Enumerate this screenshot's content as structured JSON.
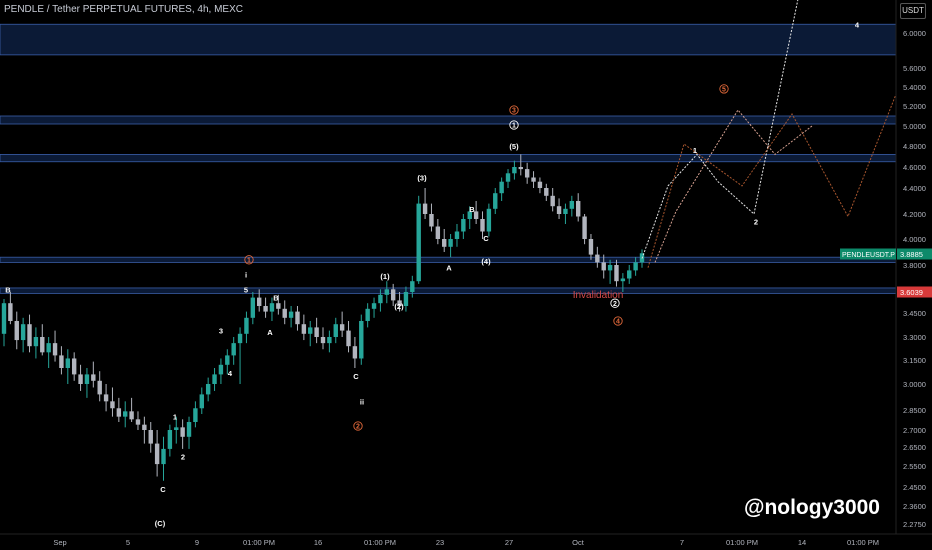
{
  "header": {
    "title": "PENDLE / Tether PERPETUAL FUTURES, 4h, MEXC",
    "unit_button": "USDT"
  },
  "watermark": "@nology3000",
  "colors": {
    "background": "#000000",
    "up_candle": "#26a69a",
    "down_candle": "#b2b5be",
    "zone_fill": "#0b1a36",
    "zone_line": "#3a5ea8",
    "orange": "#e0683a",
    "price_tag_green": "#0d8a6a",
    "price_tag_red": "#d83a3a",
    "projection_1": "#e6e6e6",
    "projection_2": "#a8562e",
    "projection_3": "#d5a090"
  },
  "chart_data": {
    "type": "candlestick",
    "y_ticks": [
      "6.0000",
      "5.6000",
      "5.4000",
      "5.2000",
      "5.0000",
      "4.8000",
      "4.6000",
      "4.4000",
      "4.2000",
      "4.0000",
      "3.8000",
      "3.6000",
      "3.4500",
      "3.3000",
      "3.1500",
      "3.0000",
      "2.8500",
      "2.7000",
      "2.6500",
      "2.5500",
      "2.4500",
      "2.3600",
      "2.2750"
    ],
    "x_ticks": [
      "Sep",
      "5",
      "9",
      "01:00 PM",
      "16",
      "01:00 PM",
      "23",
      "27",
      "Oct",
      "7",
      "01:00 PM",
      "14",
      "01:00 PM"
    ],
    "price_tags": [
      {
        "label": "PENDLEUSDT.P",
        "value": "3.8885",
        "color": "green"
      },
      {
        "label": "",
        "value": "3.6039",
        "color": "red"
      }
    ],
    "zones": [
      {
        "from": 6.1,
        "to": 5.75
      },
      {
        "from": 5.1,
        "to": 5.02
      },
      {
        "from": 4.72,
        "to": 4.65
      },
      {
        "from": 3.86,
        "to": 3.82
      },
      {
        "from": 3.63,
        "to": 3.59
      }
    ],
    "annotations": [
      {
        "text": "B",
        "x": 8,
        "price": 3.62,
        "style": "white"
      },
      {
        "text": "1",
        "x": 249,
        "price": 3.84,
        "style": "orange-circle"
      },
      {
        "text": "i",
        "x": 246,
        "price": 3.73,
        "style": "white"
      },
      {
        "text": "5",
        "x": 246,
        "price": 3.62,
        "style": "white"
      },
      {
        "text": "B",
        "x": 276,
        "price": 3.56,
        "style": "white"
      },
      {
        "text": "A",
        "x": 270,
        "price": 3.33,
        "style": "white"
      },
      {
        "text": "3",
        "x": 221,
        "price": 3.34,
        "style": "white"
      },
      {
        "text": "4",
        "x": 230,
        "price": 3.07,
        "style": "white"
      },
      {
        "text": "1",
        "x": 175,
        "price": 2.8,
        "style": "white"
      },
      {
        "text": "2",
        "x": 183,
        "price": 2.6,
        "style": "white"
      },
      {
        "text": "C",
        "x": 163,
        "price": 2.44,
        "style": "white"
      },
      {
        "text": "(C)",
        "x": 160,
        "price": 2.28,
        "style": "white"
      },
      {
        "text": "(1)",
        "x": 385,
        "price": 3.72,
        "style": "white"
      },
      {
        "text": "(2)",
        "x": 399,
        "price": 3.5,
        "style": "white"
      },
      {
        "text": "C",
        "x": 356,
        "price": 3.05,
        "style": "white"
      },
      {
        "text": "ii",
        "x": 362,
        "price": 2.9,
        "style": "white"
      },
      {
        "text": "2",
        "x": 358,
        "price": 2.73,
        "style": "orange-circle"
      },
      {
        "text": "(3)",
        "x": 422,
        "price": 4.5,
        "style": "white"
      },
      {
        "text": "B",
        "x": 472,
        "price": 4.24,
        "style": "white"
      },
      {
        "text": "C",
        "x": 486,
        "price": 4.01,
        "style": "white"
      },
      {
        "text": "(4)",
        "x": 486,
        "price": 3.83,
        "style": "white"
      },
      {
        "text": "A",
        "x": 449,
        "price": 3.78,
        "style": "white"
      },
      {
        "text": "3",
        "x": 514,
        "price": 5.16,
        "style": "orange-circle"
      },
      {
        "text": "1",
        "x": 514,
        "price": 5.01,
        "style": "white-circle"
      },
      {
        "text": "(5)",
        "x": 514,
        "price": 4.8,
        "style": "white"
      },
      {
        "text": "Invalidation",
        "x": 598,
        "price": 3.58,
        "style": "red-text"
      },
      {
        "text": "2",
        "x": 615,
        "price": 3.52,
        "style": "white-circle"
      },
      {
        "text": "4",
        "x": 618,
        "price": 3.4,
        "style": "orange-circle"
      },
      {
        "text": "1",
        "x": 695,
        "price": 4.76,
        "style": "white"
      },
      {
        "text": "2",
        "x": 756,
        "price": 4.14,
        "style": "white"
      },
      {
        "text": "5",
        "x": 724,
        "price": 5.38,
        "style": "orange-circle"
      },
      {
        "text": "4",
        "x": 857,
        "price": 6.1,
        "style": "white"
      }
    ],
    "candles": [
      [
        3.32,
        3.55,
        3.24,
        3.52
      ],
      [
        3.52,
        3.6,
        3.38,
        3.4
      ],
      [
        3.4,
        3.46,
        3.22,
        3.28
      ],
      [
        3.28,
        3.42,
        3.2,
        3.38
      ],
      [
        3.38,
        3.44,
        3.2,
        3.24
      ],
      [
        3.24,
        3.36,
        3.16,
        3.3
      ],
      [
        3.3,
        3.38,
        3.18,
        3.2
      ],
      [
        3.2,
        3.3,
        3.1,
        3.26
      ],
      [
        3.26,
        3.34,
        3.14,
        3.18
      ],
      [
        3.18,
        3.24,
        3.06,
        3.1
      ],
      [
        3.1,
        3.22,
        3.0,
        3.16
      ],
      [
        3.16,
        3.2,
        3.02,
        3.06
      ],
      [
        3.06,
        3.12,
        2.96,
        3.0
      ],
      [
        3.0,
        3.1,
        2.92,
        3.06
      ],
      [
        3.06,
        3.14,
        2.98,
        3.02
      ],
      [
        3.02,
        3.08,
        2.9,
        2.94
      ],
      [
        2.94,
        3.0,
        2.84,
        2.9
      ],
      [
        2.9,
        2.98,
        2.8,
        2.86
      ],
      [
        2.86,
        2.92,
        2.76,
        2.8
      ],
      [
        2.8,
        2.9,
        2.72,
        2.84
      ],
      [
        2.84,
        2.92,
        2.76,
        2.78
      ],
      [
        2.78,
        2.84,
        2.7,
        2.74
      ],
      [
        2.74,
        2.8,
        2.66,
        2.7
      ],
      [
        2.7,
        2.76,
        2.62,
        2.66
      ],
      [
        2.66,
        2.7,
        2.5,
        2.56
      ],
      [
        2.56,
        2.68,
        2.48,
        2.64
      ],
      [
        2.64,
        2.74,
        2.6,
        2.7
      ],
      [
        2.7,
        2.8,
        2.66,
        2.72
      ],
      [
        2.72,
        2.78,
        2.64,
        2.68
      ],
      [
        2.68,
        2.8,
        2.64,
        2.76
      ],
      [
        2.76,
        2.9,
        2.72,
        2.86
      ],
      [
        2.86,
        2.98,
        2.82,
        2.94
      ],
      [
        2.94,
        3.04,
        2.9,
        3.0
      ],
      [
        3.0,
        3.1,
        2.96,
        3.06
      ],
      [
        3.06,
        3.16,
        3.0,
        3.12
      ],
      [
        3.12,
        3.22,
        3.06,
        3.18
      ],
      [
        3.18,
        3.3,
        3.12,
        3.26
      ],
      [
        3.26,
        3.36,
        3.0,
        3.32
      ],
      [
        3.32,
        3.46,
        3.26,
        3.42
      ],
      [
        3.42,
        3.6,
        3.38,
        3.56
      ],
      [
        3.56,
        3.62,
        3.46,
        3.5
      ],
      [
        3.5,
        3.56,
        3.42,
        3.46
      ],
      [
        3.46,
        3.56,
        3.4,
        3.52
      ],
      [
        3.52,
        3.58,
        3.44,
        3.48
      ],
      [
        3.48,
        3.54,
        3.38,
        3.42
      ],
      [
        3.42,
        3.5,
        3.36,
        3.46
      ],
      [
        3.46,
        3.5,
        3.34,
        3.38
      ],
      [
        3.38,
        3.44,
        3.28,
        3.32
      ],
      [
        3.32,
        3.4,
        3.24,
        3.36
      ],
      [
        3.36,
        3.42,
        3.26,
        3.3
      ],
      [
        3.3,
        3.36,
        3.22,
        3.26
      ],
      [
        3.26,
        3.34,
        3.2,
        3.3
      ],
      [
        3.3,
        3.42,
        3.26,
        3.38
      ],
      [
        3.38,
        3.46,
        3.3,
        3.34
      ],
      [
        3.34,
        3.4,
        3.2,
        3.24
      ],
      [
        3.24,
        3.3,
        3.1,
        3.16
      ],
      [
        3.16,
        3.44,
        3.12,
        3.4
      ],
      [
        3.4,
        3.52,
        3.36,
        3.48
      ],
      [
        3.48,
        3.56,
        3.42,
        3.52
      ],
      [
        3.52,
        3.62,
        3.46,
        3.58
      ],
      [
        3.58,
        3.68,
        3.52,
        3.62
      ],
      [
        3.62,
        3.66,
        3.5,
        3.54
      ],
      [
        3.54,
        3.6,
        3.46,
        3.5
      ],
      [
        3.5,
        3.64,
        3.46,
        3.6
      ],
      [
        3.6,
        3.72,
        3.56,
        3.68
      ],
      [
        3.68,
        4.34,
        3.66,
        4.28
      ],
      [
        4.28,
        4.4,
        4.16,
        4.2
      ],
      [
        4.2,
        4.28,
        4.06,
        4.1
      ],
      [
        4.1,
        4.16,
        3.96,
        4.0
      ],
      [
        4.0,
        4.08,
        3.9,
        3.94
      ],
      [
        3.94,
        4.04,
        3.86,
        4.0
      ],
      [
        4.0,
        4.12,
        3.94,
        4.06
      ],
      [
        4.06,
        4.2,
        4.0,
        4.16
      ],
      [
        4.16,
        4.26,
        4.08,
        4.22
      ],
      [
        4.22,
        4.3,
        4.12,
        4.16
      ],
      [
        4.16,
        4.22,
        4.0,
        4.06
      ],
      [
        4.06,
        4.28,
        4.02,
        4.24
      ],
      [
        4.24,
        4.4,
        4.2,
        4.36
      ],
      [
        4.36,
        4.5,
        4.3,
        4.46
      ],
      [
        4.46,
        4.58,
        4.4,
        4.54
      ],
      [
        4.54,
        4.66,
        4.48,
        4.6
      ],
      [
        4.6,
        4.72,
        4.52,
        4.58
      ],
      [
        4.58,
        4.64,
        4.44,
        4.5
      ],
      [
        4.5,
        4.56,
        4.4,
        4.46
      ],
      [
        4.46,
        4.5,
        4.36,
        4.4
      ],
      [
        4.4,
        4.44,
        4.3,
        4.34
      ],
      [
        4.34,
        4.4,
        4.22,
        4.26
      ],
      [
        4.26,
        4.32,
        4.16,
        4.2
      ],
      [
        4.2,
        4.28,
        4.12,
        4.24
      ],
      [
        4.24,
        4.34,
        4.18,
        4.3
      ],
      [
        4.3,
        4.36,
        4.14,
        4.18
      ],
      [
        4.18,
        4.2,
        3.96,
        4.0
      ],
      [
        4.0,
        4.04,
        3.84,
        3.88
      ],
      [
        3.88,
        3.94,
        3.78,
        3.82
      ],
      [
        3.82,
        3.88,
        3.7,
        3.76
      ],
      [
        3.76,
        3.84,
        3.66,
        3.8
      ],
      [
        3.8,
        3.84,
        3.64,
        3.68
      ],
      [
        3.68,
        3.74,
        3.6,
        3.7
      ],
      [
        3.7,
        3.8,
        3.66,
        3.76
      ],
      [
        3.76,
        3.86,
        3.72,
        3.82
      ],
      [
        3.82,
        3.92,
        3.78,
        3.89
      ]
    ],
    "projections": [
      {
        "color": "projection_1",
        "points": [
          [
            642,
            3.85
          ],
          [
            668,
            4.42
          ],
          [
            697,
            4.72
          ],
          [
            718,
            4.46
          ],
          [
            754,
            4.2
          ],
          [
            800,
            6.5
          ]
        ]
      },
      {
        "color": "projection_2",
        "points": [
          [
            648,
            3.78
          ],
          [
            684,
            4.82
          ],
          [
            742,
            4.42
          ],
          [
            792,
            5.12
          ],
          [
            848,
            4.18
          ],
          [
            897,
            5.35
          ]
        ]
      },
      {
        "color": "projection_3",
        "points": [
          [
            655,
            3.82
          ],
          [
            676,
            4.22
          ],
          [
            738,
            5.16
          ],
          [
            775,
            4.72
          ],
          [
            812,
            5.0
          ]
        ]
      }
    ]
  }
}
